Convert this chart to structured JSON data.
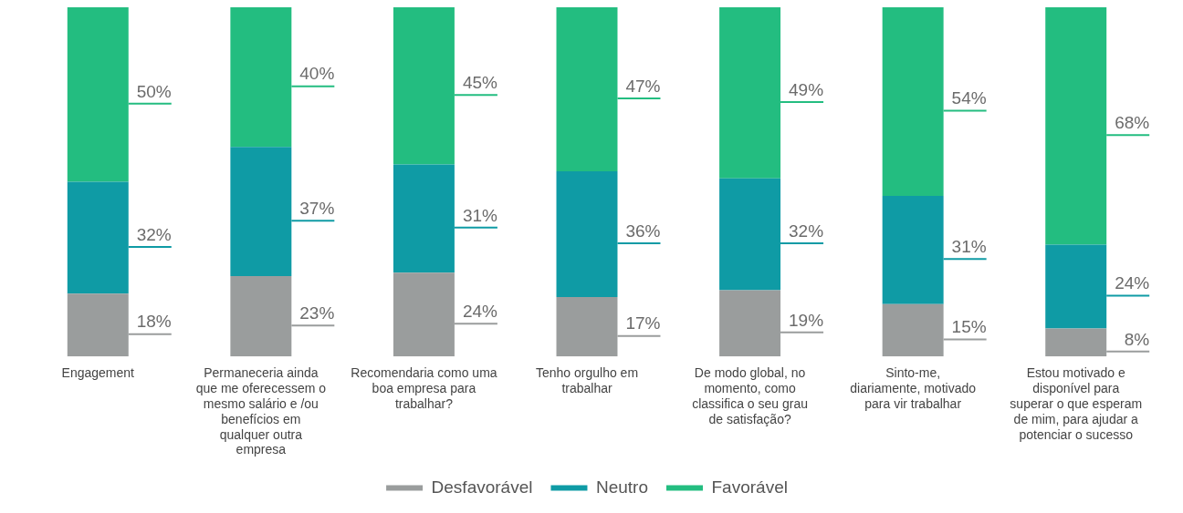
{
  "chart_data": {
    "type": "bar",
    "stacked": true,
    "categories": [
      "Engagement",
      "Permaneceria ainda que me oferecessem o mesmo salário e /ou benefícios em qualquer outra empresa",
      "Recomendaria como uma boa empresa para trabalhar?",
      "Tenho orgulho em trabalhar",
      "De modo global, no momento, como classifica o seu grau de satisfação?",
      "Sinto-me, diariamente, motivado para vir trabalhar",
      "Estou motivado e disponível para superar o que esperam de mim, para ajudar a potenciar o sucesso"
    ],
    "series": [
      {
        "name": "Desfavorável",
        "color": "#9a9d9d",
        "values": [
          18,
          23,
          24,
          17,
          19,
          15,
          8
        ],
        "value_labels": [
          "18%",
          "23%",
          "24%",
          "17%",
          "19%",
          "15%",
          "8%"
        ]
      },
      {
        "name": "Neutro",
        "color": "#0f9ba5",
        "values": [
          32,
          37,
          31,
          36,
          32,
          31,
          24
        ],
        "value_labels": [
          "32%",
          "37%",
          "31%",
          "36%",
          "32%",
          "31%",
          "24%"
        ]
      },
      {
        "name": "Favorável",
        "color": "#23bd80",
        "values": [
          50,
          40,
          45,
          47,
          49,
          54,
          68
        ],
        "value_labels": [
          "50%",
          "40%",
          "45%",
          "47%",
          "49%",
          "54%",
          "68%"
        ]
      }
    ],
    "ylim": [
      0,
      100
    ],
    "legend": "bottom"
  }
}
